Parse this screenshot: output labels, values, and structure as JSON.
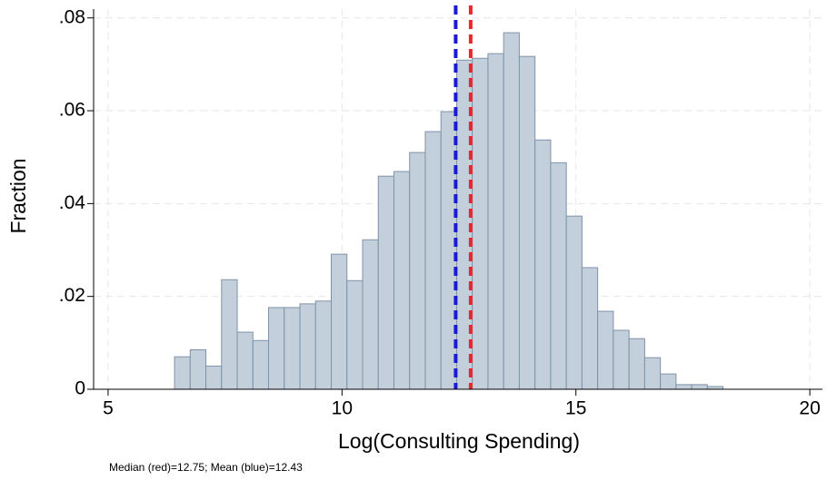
{
  "chart_data": {
    "type": "histogram",
    "x_label": "Log(Consulting Spending)",
    "y_label": "Fraction",
    "note": "Median (red)=12.75; Mean (blue)=12.43",
    "bins": [
      6.42,
      6.755,
      7.09,
      7.425,
      7.76,
      8.095,
      8.43,
      8.765,
      9.1,
      9.435,
      9.77,
      10.105,
      10.44,
      10.775,
      11.11,
      11.445,
      11.78,
      12.115,
      12.45,
      12.785,
      13.12,
      13.455,
      13.79,
      14.125,
      14.46,
      14.795,
      15.13,
      15.465,
      15.8,
      16.135,
      16.47,
      16.805,
      17.14,
      17.475,
      17.81,
      18.145
    ],
    "values": [
      0.007,
      0.0085,
      0.005,
      0.0236,
      0.0123,
      0.0105,
      0.0176,
      0.0176,
      0.0184,
      0.019,
      0.0291,
      0.0234,
      0.0322,
      0.0459,
      0.0469,
      0.051,
      0.0555,
      0.0598,
      0.0709,
      0.0713,
      0.0723,
      0.0768,
      0.0717,
      0.0537,
      0.0488,
      0.0373,
      0.0262,
      0.0168,
      0.0127,
      0.0109,
      0.0068,
      0.0033,
      0.001,
      0.001,
      0.0006
    ],
    "color": "#c3cfdb",
    "edge_color": "#7f93a8",
    "vlines": [
      {
        "value": 12.75,
        "color": "#e8262c"
      },
      {
        "value": 12.43,
        "color": "#1a1ad6"
      }
    ],
    "xlim": [
      4.69,
      20.27
    ],
    "ylim": [
      0,
      0.0819
    ],
    "xticks": [
      5,
      10,
      15,
      20
    ],
    "yticks": [
      0,
      {
        "value": 0.02,
        "label": ".02"
      },
      {
        "value": 0.04,
        "label": ".04"
      },
      {
        "value": 0.06,
        "label": ".06"
      },
      {
        "value": 0.08,
        "label": ".08"
      }
    ],
    "grid": true
  }
}
